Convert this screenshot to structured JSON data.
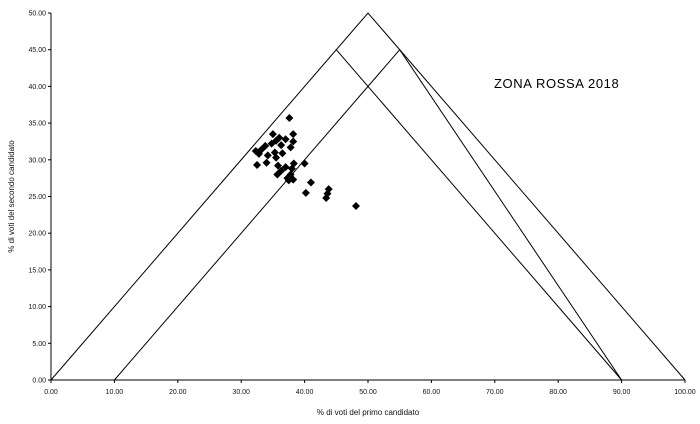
{
  "chart_data": {
    "type": "scatter",
    "title": "ZONA ROSSA 2018",
    "xlabel": "% di voti del primo candidato",
    "ylabel": "% di voti del secondo candidato",
    "xlim": [
      0,
      100
    ],
    "ylim": [
      0,
      50
    ],
    "x_ticks": [
      "0.00",
      "10.00",
      "20.00",
      "30.00",
      "40.00",
      "50.00",
      "60.00",
      "70.00",
      "80.00",
      "90.00",
      "100.00"
    ],
    "y_ticks": [
      "0.00",
      "5.00",
      "10.00",
      "15.00",
      "20.00",
      "25.00",
      "30.00",
      "35.00",
      "40.00",
      "45.00",
      "50.00"
    ],
    "grid": false,
    "reference_lines": [
      {
        "x": [
          0,
          50,
          100
        ],
        "y": [
          0,
          50,
          0
        ]
      },
      {
        "x": [
          10,
          55,
          90,
          45
        ],
        "y": [
          0,
          45,
          0,
          45
        ]
      }
    ],
    "points": [
      {
        "x": 37.6,
        "y": 35.7
      },
      {
        "x": 35.0,
        "y": 33.5
      },
      {
        "x": 38.2,
        "y": 33.5
      },
      {
        "x": 36.0,
        "y": 33.0
      },
      {
        "x": 37.0,
        "y": 32.8
      },
      {
        "x": 35.5,
        "y": 32.6
      },
      {
        "x": 34.8,
        "y": 32.2
      },
      {
        "x": 38.2,
        "y": 32.5
      },
      {
        "x": 33.8,
        "y": 31.9
      },
      {
        "x": 36.3,
        "y": 32.0
      },
      {
        "x": 37.8,
        "y": 31.7
      },
      {
        "x": 32.3,
        "y": 31.2
      },
      {
        "x": 33.2,
        "y": 31.4
      },
      {
        "x": 35.3,
        "y": 31.0
      },
      {
        "x": 36.5,
        "y": 30.9
      },
      {
        "x": 32.8,
        "y": 30.8
      },
      {
        "x": 34.2,
        "y": 30.6
      },
      {
        "x": 35.5,
        "y": 30.3
      },
      {
        "x": 34.0,
        "y": 29.6
      },
      {
        "x": 32.5,
        "y": 29.3
      },
      {
        "x": 35.8,
        "y": 29.2
      },
      {
        "x": 37.0,
        "y": 29.0
      },
      {
        "x": 38.3,
        "y": 29.5
      },
      {
        "x": 40.0,
        "y": 29.5
      },
      {
        "x": 38.0,
        "y": 28.8
      },
      {
        "x": 36.3,
        "y": 28.5
      },
      {
        "x": 35.7,
        "y": 28.0
      },
      {
        "x": 37.8,
        "y": 28.0
      },
      {
        "x": 37.3,
        "y": 27.5
      },
      {
        "x": 37.5,
        "y": 27.2
      },
      {
        "x": 38.2,
        "y": 27.3
      },
      {
        "x": 41.0,
        "y": 26.9
      },
      {
        "x": 43.8,
        "y": 26.0
      },
      {
        "x": 40.2,
        "y": 25.5
      },
      {
        "x": 43.6,
        "y": 25.4
      },
      {
        "x": 43.4,
        "y": 24.8
      },
      {
        "x": 48.1,
        "y": 23.7
      }
    ]
  }
}
